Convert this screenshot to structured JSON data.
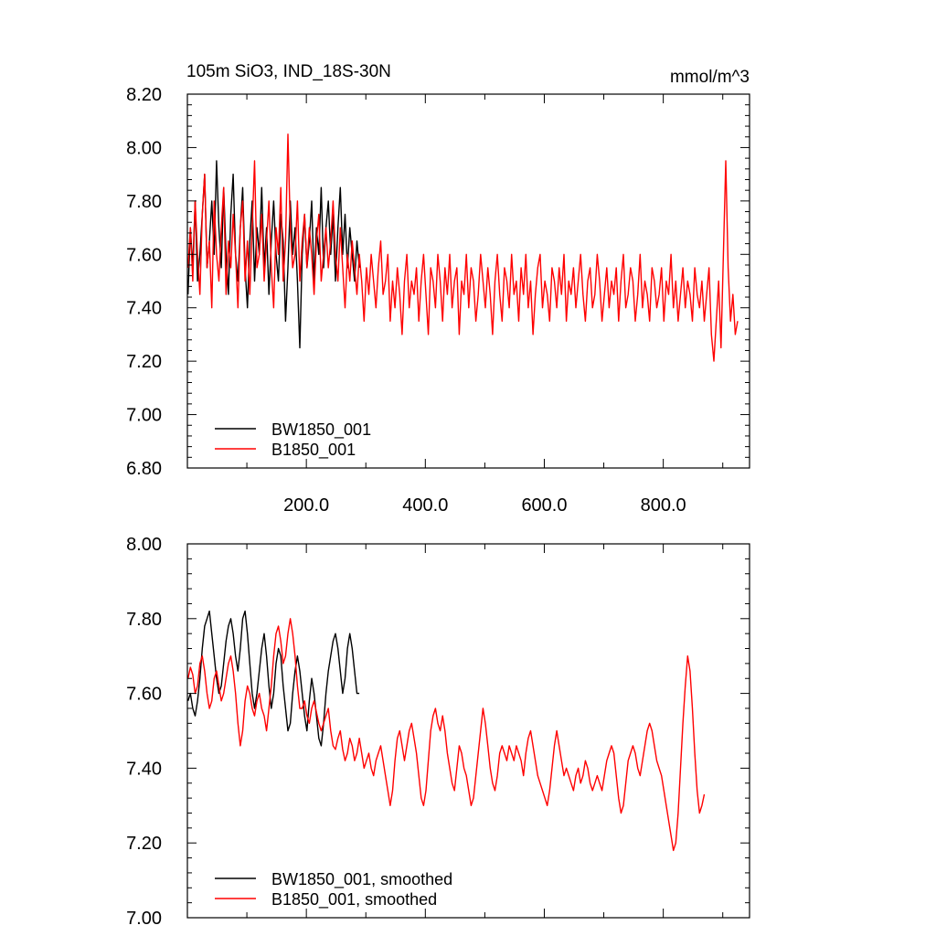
{
  "chart_data": [
    {
      "type": "line",
      "title": "105m SiO3, IND_18S-30N",
      "units": "mmol/m^3",
      "xlim": [
        0,
        945
      ],
      "ylim": [
        6.8,
        8.2
      ],
      "yticks": [
        "6.80",
        "7.00",
        "7.20",
        "7.40",
        "7.60",
        "7.80",
        "8.00",
        "8.20"
      ],
      "xticks": [
        "200.0",
        "400.0",
        "600.0",
        "800.0"
      ],
      "legend_position": "bottom-left",
      "series": [
        {
          "name": "BW1850_001",
          "color": "#000000",
          "x_start": 1,
          "x_step": 4,
          "values": [
            7.45,
            7.7,
            7.55,
            7.8,
            7.5,
            7.6,
            7.75,
            7.9,
            7.55,
            7.65,
            7.8,
            7.6,
            7.95,
            7.7,
            7.55,
            7.85,
            7.6,
            7.45,
            7.75,
            7.9,
            7.6,
            7.5,
            7.7,
            7.85,
            7.55,
            7.4,
            7.65,
            7.8,
            7.5,
            7.7,
            7.6,
            7.85,
            7.55,
            7.7,
            7.45,
            7.65,
            7.8,
            7.6,
            7.5,
            7.75,
            7.65,
            7.35,
            7.55,
            7.8,
            7.6,
            7.7,
            7.5,
            7.25,
            7.6,
            7.75,
            7.55,
            7.65,
            7.8,
            7.5,
            7.7,
            7.6,
            7.85,
            7.55,
            7.7,
            7.8,
            7.6,
            7.75,
            7.5,
            7.7,
            7.85,
            7.6,
            7.75,
            7.55,
            7.7,
            7.6,
            7.5,
            7.65,
            7.55
          ]
        },
        {
          "name": "B1850_001",
          "color": "#ff0000",
          "x_start": 1,
          "x_step": 4,
          "values": [
            7.55,
            7.7,
            7.5,
            7.8,
            7.6,
            7.45,
            7.75,
            7.9,
            7.55,
            7.65,
            7.4,
            7.8,
            7.6,
            7.5,
            7.7,
            7.85,
            7.45,
            7.65,
            7.55,
            7.75,
            7.6,
            7.4,
            7.7,
            7.8,
            7.5,
            7.65,
            7.45,
            7.7,
            7.95,
            7.55,
            7.6,
            7.75,
            7.5,
            7.65,
            7.8,
            7.55,
            7.4,
            7.7,
            7.6,
            7.85,
            7.5,
            7.65,
            8.05,
            7.7,
            7.55,
            7.6,
            7.8,
            7.5,
            7.65,
            7.75,
            7.55,
            7.7,
            7.6,
            7.45,
            7.65,
            7.75,
            7.5,
            7.6,
            7.7,
            7.55,
            7.65,
            7.8,
            7.6,
            7.5,
            7.7,
            7.55,
            7.4,
            7.6,
            7.5,
            7.65,
            7.55,
            7.45,
            7.6,
            7.5,
            7.35,
            7.55,
            7.45,
            7.6,
            7.5,
            7.4,
            7.55,
            7.65,
            7.45,
            7.5,
            7.6,
            7.35,
            7.5,
            7.4,
            7.55,
            7.45,
            7.3,
            7.5,
            7.6,
            7.4,
            7.5,
            7.45,
            7.55,
            7.35,
            7.5,
            7.6,
            7.45,
            7.3,
            7.55,
            7.5,
            7.4,
            7.6,
            7.5,
            7.35,
            7.55,
            7.45,
            7.6,
            7.4,
            7.5,
            7.55,
            7.3,
            7.5,
            7.45,
            7.6,
            7.4,
            7.55,
            7.5,
            7.35,
            7.45,
            7.6,
            7.5,
            7.4,
            7.55,
            7.45,
            7.3,
            7.5,
            7.6,
            7.45,
            7.35,
            7.55,
            7.5,
            7.4,
            7.6,
            7.45,
            7.5,
            7.35,
            7.55,
            7.45,
            7.6,
            7.4,
            7.5,
            7.3,
            7.45,
            7.55,
            7.6,
            7.4,
            7.5,
            7.45,
            7.35,
            7.55,
            7.5,
            7.4,
            7.55,
            7.45,
            7.6,
            7.35,
            7.5,
            7.45,
            7.55,
            7.4,
            7.5,
            7.6,
            7.45,
            7.35,
            7.5,
            7.55,
            7.4,
            7.45,
            7.6,
            7.5,
            7.35,
            7.45,
            7.55,
            7.4,
            7.5,
            7.45,
            7.55,
            7.35,
            7.5,
            7.6,
            7.4,
            7.45,
            7.55,
            7.5,
            7.35,
            7.45,
            7.6,
            7.4,
            7.5,
            7.45,
            7.35,
            7.55,
            7.5,
            7.4,
            7.45,
            7.55,
            7.35,
            7.5,
            7.45,
            7.6,
            7.4,
            7.5,
            7.35,
            7.45,
            7.55,
            7.4,
            7.5,
            7.45,
            7.35,
            7.55,
            7.45,
            7.4,
            7.5,
            7.35,
            7.45,
            7.55,
            7.3,
            7.2,
            7.35,
            7.5,
            7.25,
            7.6,
            7.95,
            7.55,
            7.35,
            7.45,
            7.3,
            7.35
          ]
        }
      ]
    },
    {
      "type": "line",
      "xlim": [
        0,
        945
      ],
      "ylim": [
        7.0,
        8.0
      ],
      "yticks": [
        "7.00",
        "7.20",
        "7.40",
        "7.60",
        "7.80",
        "8.00"
      ],
      "legend_position": "bottom-left",
      "series": [
        {
          "name": "BW1850_001, smoothed",
          "color": "#000000",
          "x_start": 1,
          "x_step": 4,
          "values": [
            7.58,
            7.6,
            7.56,
            7.54,
            7.58,
            7.64,
            7.72,
            7.78,
            7.8,
            7.82,
            7.76,
            7.7,
            7.64,
            7.6,
            7.62,
            7.68,
            7.74,
            7.78,
            7.8,
            7.76,
            7.7,
            7.66,
            7.72,
            7.8,
            7.82,
            7.76,
            7.68,
            7.6,
            7.56,
            7.6,
            7.66,
            7.72,
            7.76,
            7.7,
            7.62,
            7.56,
            7.6,
            7.68,
            7.72,
            7.7,
            7.62,
            7.56,
            7.5,
            7.52,
            7.6,
            7.66,
            7.7,
            7.66,
            7.6,
            7.54,
            7.5,
            7.58,
            7.64,
            7.6,
            7.54,
            7.48,
            7.46,
            7.52,
            7.6,
            7.66,
            7.7,
            7.74,
            7.76,
            7.72,
            7.66,
            7.6,
            7.64,
            7.72,
            7.76,
            7.72,
            7.66,
            7.6,
            7.6
          ]
        },
        {
          "name": "B1850_001, smoothed",
          "color": "#ff0000",
          "x_start": 1,
          "x_step": 4,
          "values": [
            7.64,
            7.67,
            7.65,
            7.6,
            7.62,
            7.68,
            7.7,
            7.66,
            7.6,
            7.56,
            7.58,
            7.64,
            7.66,
            7.62,
            7.58,
            7.6,
            7.64,
            7.68,
            7.7,
            7.66,
            7.6,
            7.52,
            7.46,
            7.5,
            7.58,
            7.62,
            7.6,
            7.56,
            7.54,
            7.58,
            7.6,
            7.56,
            7.54,
            7.5,
            7.56,
            7.62,
            7.7,
            7.76,
            7.78,
            7.74,
            7.68,
            7.7,
            7.76,
            7.8,
            7.76,
            7.7,
            7.62,
            7.56,
            7.56,
            7.58,
            7.54,
            7.52,
            7.56,
            7.58,
            7.55,
            7.52,
            7.5,
            7.52,
            7.54,
            7.56,
            7.5,
            7.46,
            7.45,
            7.48,
            7.5,
            7.45,
            7.42,
            7.44,
            7.48,
            7.46,
            7.42,
            7.44,
            7.48,
            7.44,
            7.4,
            7.42,
            7.44,
            7.4,
            7.38,
            7.42,
            7.44,
            7.46,
            7.42,
            7.38,
            7.34,
            7.3,
            7.34,
            7.42,
            7.48,
            7.5,
            7.46,
            7.42,
            7.46,
            7.5,
            7.52,
            7.48,
            7.44,
            7.38,
            7.32,
            7.3,
            7.34,
            7.42,
            7.5,
            7.54,
            7.56,
            7.52,
            7.5,
            7.54,
            7.5,
            7.44,
            7.4,
            7.36,
            7.34,
            7.4,
            7.46,
            7.44,
            7.4,
            7.38,
            7.34,
            7.3,
            7.32,
            7.38,
            7.44,
            7.5,
            7.56,
            7.52,
            7.46,
            7.4,
            7.36,
            7.34,
            7.38,
            7.44,
            7.46,
            7.44,
            7.42,
            7.46,
            7.44,
            7.42,
            7.46,
            7.44,
            7.42,
            7.38,
            7.44,
            7.48,
            7.5,
            7.46,
            7.42,
            7.38,
            7.36,
            7.34,
            7.32,
            7.3,
            7.34,
            7.4,
            7.46,
            7.5,
            7.46,
            7.42,
            7.38,
            7.4,
            7.38,
            7.36,
            7.34,
            7.38,
            7.4,
            7.36,
            7.38,
            7.42,
            7.4,
            7.36,
            7.34,
            7.36,
            7.38,
            7.36,
            7.34,
            7.38,
            7.42,
            7.44,
            7.46,
            7.44,
            7.38,
            7.32,
            7.28,
            7.3,
            7.36,
            7.42,
            7.44,
            7.46,
            7.44,
            7.4,
            7.38,
            7.42,
            7.46,
            7.5,
            7.52,
            7.5,
            7.46,
            7.42,
            7.4,
            7.38,
            7.34,
            7.3,
            7.26,
            7.22,
            7.18,
            7.2,
            7.28,
            7.4,
            7.52,
            7.62,
            7.7,
            7.66,
            7.56,
            7.44,
            7.34,
            7.28,
            7.3,
            7.33
          ]
        }
      ]
    }
  ]
}
